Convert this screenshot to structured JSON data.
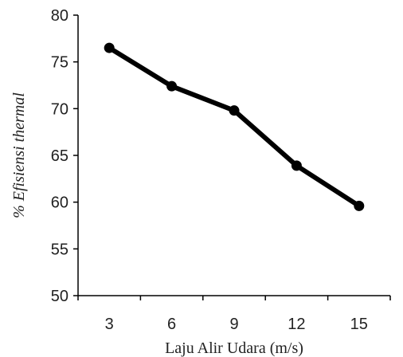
{
  "chart_data": {
    "type": "line",
    "title": "",
    "xlabel": "Laju Alir Udara (m/s)",
    "ylabel": "% Efisiensi thermal",
    "x": [
      3,
      6,
      9,
      12,
      15
    ],
    "series": [
      {
        "values": [
          76.5,
          72.4,
          69.8,
          63.9,
          59.6
        ]
      }
    ],
    "ylim": [
      50,
      80
    ],
    "yticks": [
      50,
      55,
      60,
      65,
      70,
      75,
      80
    ],
    "xticks": [
      "3",
      "6",
      "9",
      "12",
      "15"
    ],
    "grid": false,
    "legend": "none",
    "colors": {
      "line": "#000000",
      "marker": "#000000"
    }
  }
}
